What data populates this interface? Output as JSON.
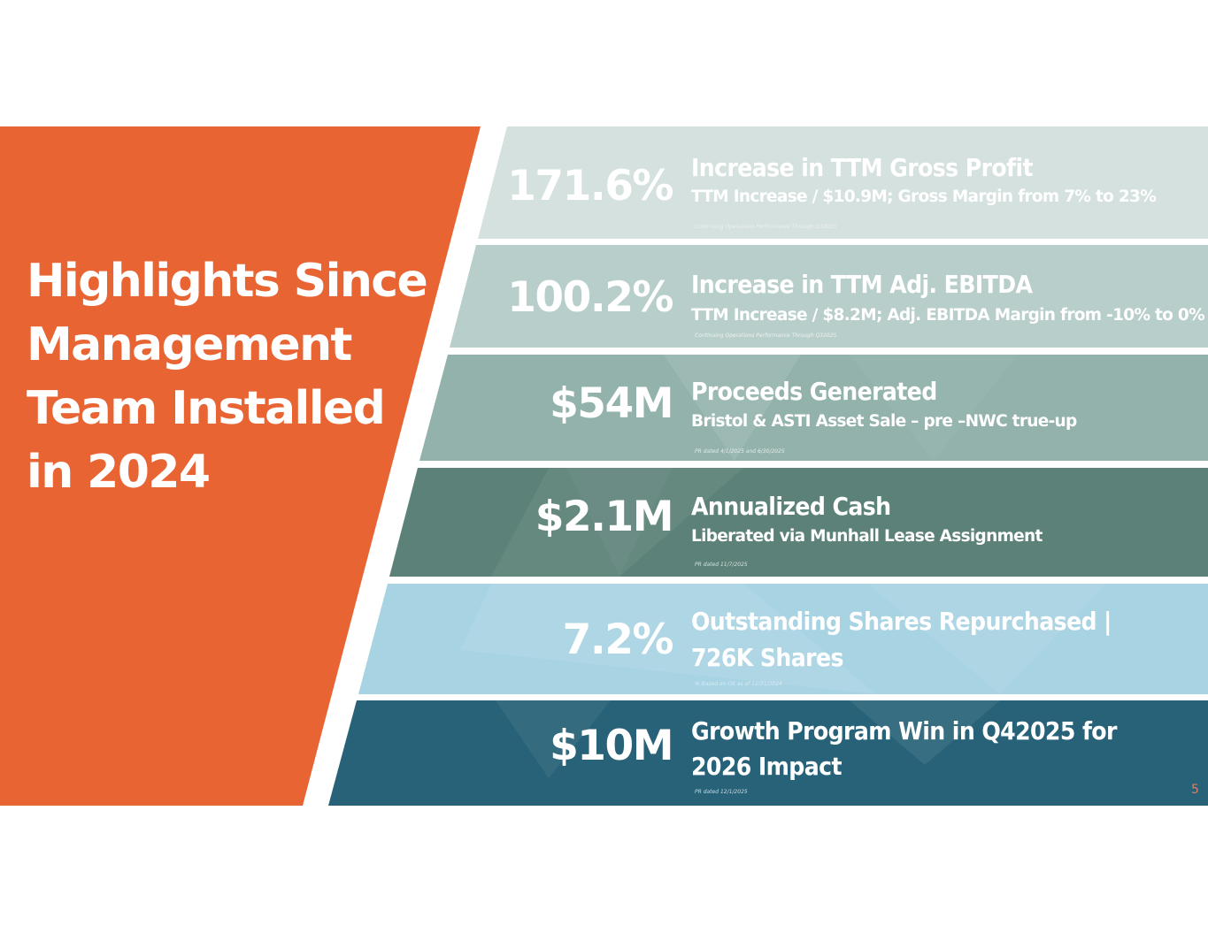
{
  "slide": {
    "headline_lines": [
      "Highlights Since",
      "Management",
      "Team Installed",
      "in 2024"
    ],
    "page_number": "5",
    "colors": {
      "accent_orange": "#e96433",
      "row1": "#d5e1df",
      "row2": "#b8ceca",
      "row3": "#92b2ab",
      "row4": "#5c8178",
      "row5": "#a8d3e3",
      "row6": "#286278"
    }
  },
  "highlights": [
    {
      "metric": "171.6%",
      "title": "Increase in TTM Gross Profit",
      "subtitle": "TTM Increase / $10.9M; Gross Margin from  7% to 23%",
      "footnote": "Continuing Operations Performance  Through Q32025"
    },
    {
      "metric": "100.2%",
      "title": "Increase in TTM Adj. EBITDA",
      "subtitle": "TTM Increase / $8.2M;  Adj. EBITDA Margin from -10% to 0%",
      "footnote": "Continuing Operations Performance  Through Q32025"
    },
    {
      "metric": "$54M",
      "title": "Proceeds Generated",
      "subtitle": "Bristol & ASTI Asset Sale – pre –NWC true-up",
      "footnote": "PR dated  4/1/2025 and 6/30/2025"
    },
    {
      "metric": "$2.1M",
      "title": "Annualized Cash",
      "subtitle": "Liberated via Munhall Lease Assignment",
      "footnote": "PR dated 11/7/2025"
    },
    {
      "metric": "7.2%",
      "title": "Outstanding Shares Repurchased |",
      "title_line2": "726K Shares",
      "footnote": "% Based on OS as of 12/31/2024"
    },
    {
      "metric": "$10M",
      "title": "Growth Program Win in Q42025 for",
      "title_line2": "2026 Impact",
      "footnote": "PR dated 12/1/2025"
    }
  ]
}
